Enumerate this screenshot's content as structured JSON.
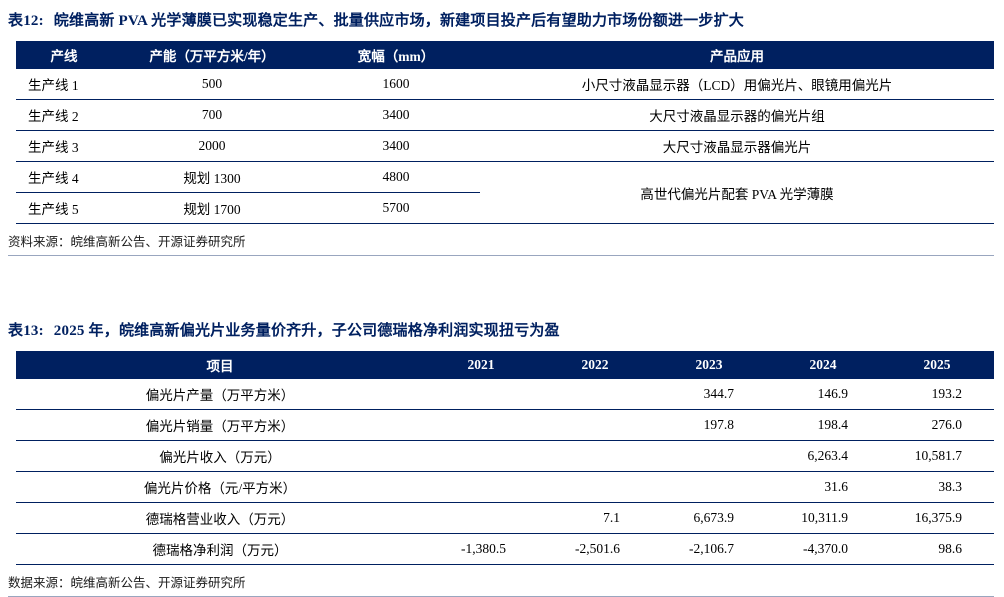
{
  "colors": {
    "navy": "#002060",
    "header_text": "#ffffff",
    "body_text": "#000000"
  },
  "table12": {
    "tag": "表12:",
    "title": "皖维高新 PVA 光学薄膜已实现稳定生产、批量供应市场，新建项目投产后有望助力市场份额进一步扩大",
    "headers": [
      "产线",
      "产能（万平方米/年）",
      "宽幅（mm）",
      "产品应用"
    ],
    "rows": [
      [
        "生产线 1",
        "500",
        "1600",
        "小尺寸液晶显示器（LCD）用偏光片、眼镜用偏光片"
      ],
      [
        "生产线 2",
        "700",
        "3400",
        "大尺寸液晶显示器的偏光片组"
      ],
      [
        "生产线 3",
        "2000",
        "3400",
        "大尺寸液晶显示器偏光片"
      ],
      [
        "生产线 4",
        "规划 1300",
        "4800",
        {
          "text": "高世代偏光片配套 PVA 光学薄膜",
          "rowspan": 2
        }
      ],
      [
        "生产线 5",
        "规划 1700",
        "5700",
        null
      ]
    ],
    "source": "资料来源：皖维高新公告、开源证券研究所"
  },
  "table13": {
    "tag": "表13:",
    "title": "2025 年，皖维高新偏光片业务量价齐升，子公司德瑞格净利润实现扭亏为盈",
    "headers": [
      "项目",
      "2021",
      "2022",
      "2023",
      "2024",
      "2025"
    ],
    "rows": [
      [
        "偏光片产量（万平方米）",
        "",
        "",
        "344.7",
        "146.9",
        "193.2"
      ],
      [
        "偏光片销量（万平方米）",
        "",
        "",
        "197.8",
        "198.4",
        "276.0"
      ],
      [
        "偏光片收入（万元）",
        "",
        "",
        "",
        "6,263.4",
        "10,581.7"
      ],
      [
        "偏光片价格（元/平方米）",
        "",
        "",
        "",
        "31.6",
        "38.3"
      ],
      [
        "德瑞格营业收入（万元）",
        "",
        "7.1",
        "6,673.9",
        "10,311.9",
        "16,375.9"
      ],
      [
        "德瑞格净利润（万元）",
        "-1,380.5",
        "-2,501.6",
        "-2,106.7",
        "-4,370.0",
        "98.6"
      ]
    ],
    "source": "数据来源：皖维高新公告、开源证券研究所"
  }
}
